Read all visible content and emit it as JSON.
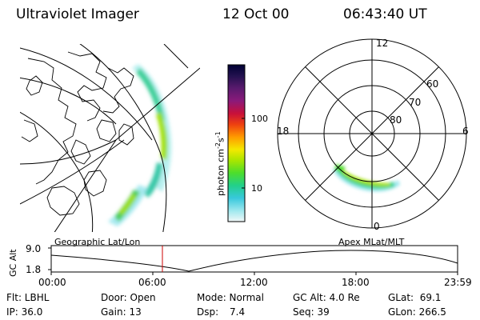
{
  "header": {
    "instrument": "Ultraviolet Imager",
    "date": "12 Oct 00",
    "time": "06:43:40 UT"
  },
  "colorbar": {
    "unit_label": "photon cm",
    "unit_sup1": "-2",
    "unit_mid": "s",
    "unit_sup2": "-1",
    "tick_100": "100",
    "tick_10": "10",
    "colors": [
      "#000033",
      "#22114f",
      "#5a1a6e",
      "#8a1a7a",
      "#c8103a",
      "#ee4010",
      "#ff9a00",
      "#f4e800",
      "#a9e600",
      "#4cdd2c",
      "#22d08a",
      "#38c8dc",
      "#9ee8ee",
      "#f2f8f8"
    ]
  },
  "labels": {
    "geo": "Geographic Lat/Lon",
    "apex": "Apex MLat/MLT"
  },
  "polar": {
    "mlt_12": "12",
    "mlt_18": "18",
    "mlt_6": "6",
    "mlt_0": "0",
    "lat_60": "60",
    "lat_70": "70",
    "lat_80": "80"
  },
  "altitude_plot": {
    "ylabel": "GC Alt",
    "ytick_top": "9.0",
    "ytick_bottom": "1.8",
    "xticks": [
      "00:00",
      "06:00",
      "12:00",
      "18:00",
      "23:59"
    ],
    "marker_time": "06:43:40",
    "marker_color": "#cc0000"
  },
  "info": {
    "flt": "Flt: LBHL",
    "door": "Door: Open",
    "mode": "Mode: Normal",
    "gc_alt": "GC Alt: 4.0 Re",
    "glat": "GLat:  69.1",
    "ip": "IP: 36.0",
    "gain": "Gain: 13",
    "dsp_label": "Dsp:",
    "dsp_value": "7.4",
    "seq": "Seq: 39",
    "glon": "GLon: 266.5"
  }
}
